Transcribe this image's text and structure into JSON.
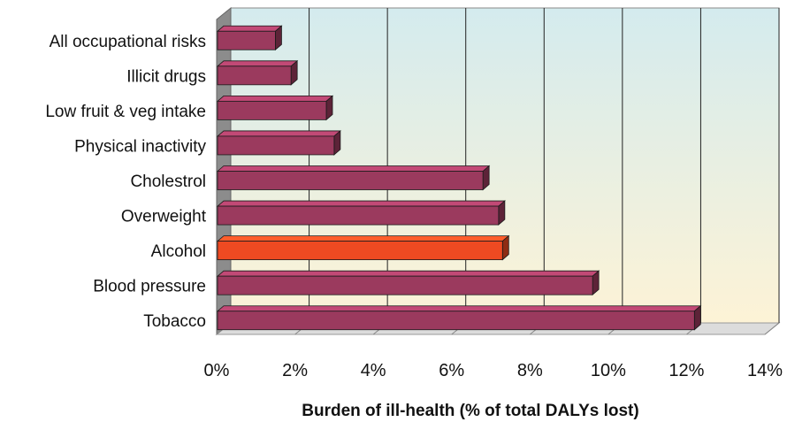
{
  "chart_data": {
    "type": "bar",
    "orientation": "horizontal",
    "categories": [
      "All occupational risks",
      "Illicit drugs",
      "Low fruit & veg intake",
      "Physical inactivity",
      "Cholestrol",
      "Overweight",
      "Alcohol",
      "Blood pressure",
      "Tobacco"
    ],
    "values": [
      1.5,
      1.9,
      2.8,
      3.0,
      6.8,
      7.2,
      7.3,
      9.6,
      12.2
    ],
    "highlight_category": "Alcohol",
    "bar_color": "#9b3a5e",
    "highlight_color": "#ee4a22",
    "xlabel": "Burden of ill-health (% of total DALYs lost)",
    "xlim": [
      0,
      14
    ],
    "xticks": [
      "0%",
      "2%",
      "4%",
      "6%",
      "8%",
      "10%",
      "12%",
      "14%"
    ],
    "grid": true,
    "background_gradient": [
      "#d4ebee",
      "#fdf3d6"
    ]
  }
}
